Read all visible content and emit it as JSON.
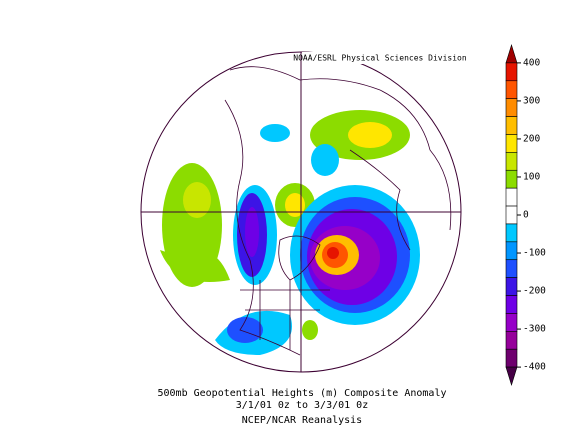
{
  "header": {
    "credit": "NOAA/ESRL Physical Sciences Division"
  },
  "caption": {
    "line1": "500mb Geopotential Heights (m)   Composite Anomaly",
    "line2": "3/1/01 0z  to 3/3/01 0z",
    "line3": "NCEP/NCAR Reanalysis"
  },
  "colorbar": {
    "ticks": [
      400,
      300,
      200,
      100,
      0,
      -100,
      -200,
      -300,
      -400
    ],
    "colors": [
      "#a00000",
      "#e61400",
      "#ff5500",
      "#ff8c00",
      "#ffbe00",
      "#ffe600",
      "#c8e600",
      "#8cdc00",
      "#ffffff",
      "#ffffff",
      "#00c8ff",
      "#0096ff",
      "#1e50ff",
      "#3c14e6",
      "#6e00e6",
      "#9600c8",
      "#96009b",
      "#6e006e",
      "#460046"
    ]
  }
}
